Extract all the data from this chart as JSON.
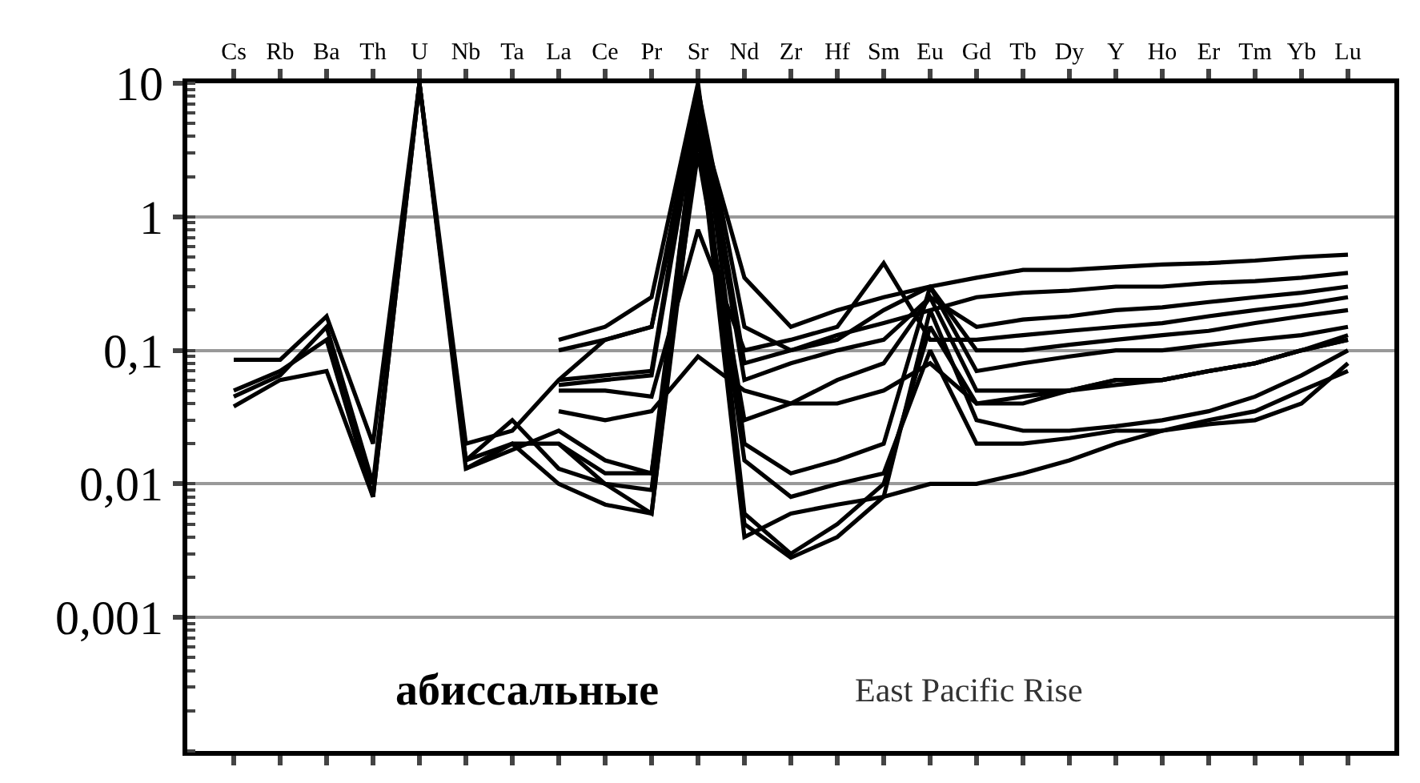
{
  "chart_data": {
    "type": "line",
    "categories": [
      "Cs",
      "Rb",
      "Ba",
      "Th",
      "U",
      "Nb",
      "Ta",
      "La",
      "Ce",
      "Pr",
      "Sr",
      "Nd",
      "Zr",
      "Hf",
      "Sm",
      "Eu",
      "Gd",
      "Tb",
      "Dy",
      "Y",
      "Ho",
      "Er",
      "Tm",
      "Yb",
      "Lu"
    ],
    "series": [
      {
        "color": "#000000",
        "values": [
          0.085,
          0.085,
          0.18,
          0.02,
          10,
          0.02,
          0.025,
          0.06,
          0.12,
          0.15,
          9,
          0.15,
          0.1,
          0.12,
          0.2,
          0.3,
          0.35,
          0.4,
          0.4,
          0.42,
          0.44,
          0.45,
          0.47,
          0.5,
          0.52
        ]
      },
      {
        "color": "#000000",
        "values": [
          0.05,
          0.07,
          0.12,
          0.008,
          10,
          0.013,
          0.018,
          0.025,
          0.015,
          0.012,
          7,
          0.005,
          0.0028,
          0.004,
          0.008,
          0.2,
          0.03,
          0.025,
          0.025,
          0.027,
          0.03,
          0.035,
          0.045,
          0.065,
          0.1
        ]
      },
      {
        "color": "#000000",
        "values": [
          0.045,
          0.065,
          0.15,
          0.01,
          10,
          0.015,
          0.02,
          0.02,
          0.01,
          0.009,
          8,
          0.006,
          0.003,
          0.005,
          0.01,
          0.15,
          0.04,
          0.04,
          0.05,
          0.06,
          0.06,
          0.07,
          0.08,
          0.1,
          0.13
        ]
      },
      {
        "color": "#000000",
        "values": [
          0.038,
          0.06,
          0.07,
          0.008,
          10,
          0.015,
          0.03,
          0.013,
          0.01,
          0.006,
          5,
          0.004,
          0.006,
          0.007,
          0.008,
          0.01,
          0.01,
          0.012,
          0.015,
          0.02,
          0.025,
          0.03,
          0.035,
          0.05,
          0.07
        ]
      },
      {
        "color": "#000000",
        "values": [
          null,
          null,
          null,
          null,
          null,
          null,
          null,
          0.06,
          0.065,
          0.07,
          9,
          0.08,
          0.1,
          0.13,
          0.16,
          0.2,
          0.25,
          0.27,
          0.28,
          0.3,
          0.3,
          0.32,
          0.33,
          0.35,
          0.38
        ]
      },
      {
        "color": "#000000",
        "values": [
          null,
          null,
          null,
          null,
          null,
          null,
          null,
          0.055,
          0.06,
          0.065,
          7,
          0.06,
          0.08,
          0.1,
          0.12,
          0.25,
          0.15,
          0.17,
          0.18,
          0.2,
          0.21,
          0.23,
          0.25,
          0.27,
          0.3
        ]
      },
      {
        "color": "#000000",
        "values": [
          null,
          null,
          null,
          null,
          null,
          null,
          null,
          0.05,
          0.05,
          0.045,
          0.8,
          0.1,
          0.12,
          0.15,
          0.45,
          0.12,
          0.12,
          0.13,
          0.14,
          0.15,
          0.16,
          0.18,
          0.2,
          0.22,
          0.25
        ]
      },
      {
        "color": "#000000",
        "values": [
          null,
          null,
          null,
          null,
          null,
          null,
          null,
          0.1,
          0.12,
          0.15,
          6,
          0.35,
          0.15,
          0.2,
          0.25,
          0.3,
          0.1,
          0.1,
          0.11,
          0.12,
          0.13,
          0.14,
          0.16,
          0.18,
          0.2
        ]
      },
      {
        "color": "#000000",
        "values": [
          null,
          null,
          null,
          null,
          null,
          null,
          null,
          0.12,
          0.15,
          0.25,
          10,
          0.02,
          0.012,
          0.015,
          0.02,
          0.3,
          0.07,
          0.08,
          0.09,
          0.1,
          0.1,
          0.11,
          0.12,
          0.13,
          0.15
        ]
      },
      {
        "color": "#000000",
        "values": [
          null,
          null,
          null,
          null,
          null,
          null,
          null,
          0.035,
          0.03,
          0.035,
          0.09,
          0.05,
          0.04,
          0.04,
          0.05,
          0.08,
          0.04,
          0.045,
          0.05,
          0.06,
          0.06,
          0.07,
          0.08,
          0.1,
          0.12
        ]
      },
      {
        "color": "#000000",
        "values": [
          null,
          null,
          null,
          null,
          null,
          0.013,
          0.02,
          0.01,
          0.007,
          0.006,
          4,
          0.015,
          0.008,
          0.01,
          0.012,
          0.1,
          0.02,
          0.02,
          0.022,
          0.025,
          0.025,
          0.028,
          0.03,
          0.04,
          0.08
        ]
      },
      {
        "color": "#000000",
        "values": [
          null,
          null,
          null,
          null,
          null,
          null,
          null,
          0.02,
          0.012,
          0.012,
          3,
          0.03,
          0.04,
          0.06,
          0.08,
          0.25,
          0.05,
          0.05,
          0.05,
          0.055,
          0.06,
          0.07,
          0.08,
          0.1,
          0.12
        ]
      }
    ],
    "ylim": [
      0.0001,
      10
    ],
    "yticks": [
      {
        "value": 0.001,
        "label": "0,001"
      },
      {
        "value": 0.01,
        "label": "0,01"
      },
      {
        "value": 0.1,
        "label": "0,1"
      },
      1,
      10
    ],
    "log": "y",
    "grid": "y",
    "marker": "none",
    "line_style": "solid",
    "annotations": [
      "абиссальные",
      "East Pacific Rise"
    ]
  }
}
